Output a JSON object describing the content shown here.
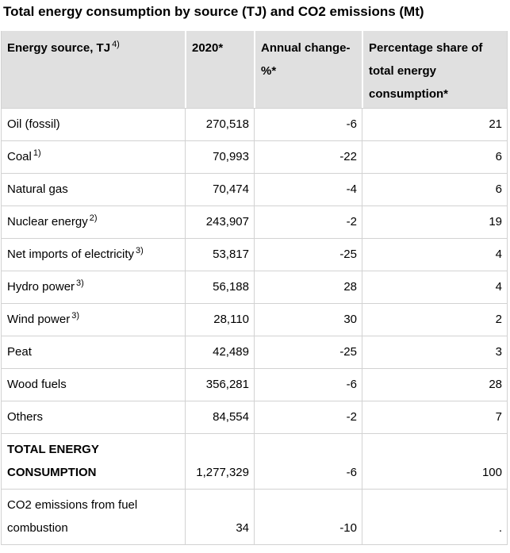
{
  "title": "Total energy consumption by source (TJ) and CO2 emissions (Mt)",
  "table": {
    "header": [
      {
        "label": "Energy source, TJ",
        "sup": "4)"
      },
      {
        "label": "2020*",
        "sup": ""
      },
      {
        "label": "Annual change-%*",
        "sup": ""
      },
      {
        "label": "Percentage share of total energy consumption*",
        "sup": ""
      }
    ],
    "rows": [
      {
        "source": "Oil (fossil)",
        "sup": "",
        "value_2020": "270,518",
        "annual_change": "-6",
        "share": "21"
      },
      {
        "source": "Coal",
        "sup": "1)",
        "value_2020": "70,993",
        "annual_change": "-22",
        "share": "6"
      },
      {
        "source": "Natural gas",
        "sup": "",
        "value_2020": "70,474",
        "annual_change": "-4",
        "share": "6"
      },
      {
        "source": "Nuclear energy",
        "sup": "2)",
        "value_2020": "243,907",
        "annual_change": "-2",
        "share": "19"
      },
      {
        "source": "Net imports of electricity",
        "sup": "3)",
        "value_2020": "53,817",
        "annual_change": "-25",
        "share": "4"
      },
      {
        "source": "Hydro power",
        "sup": "3)",
        "value_2020": "56,188",
        "annual_change": "28",
        "share": "4"
      },
      {
        "source": "Wind power",
        "sup": "3)",
        "value_2020": "28,110",
        "annual_change": "30",
        "share": "2"
      },
      {
        "source": "Peat",
        "sup": "",
        "value_2020": "42,489",
        "annual_change": "-25",
        "share": "3"
      },
      {
        "source": "Wood fuels",
        "sup": "",
        "value_2020": "356,281",
        "annual_change": "-6",
        "share": "28"
      },
      {
        "source": "Others",
        "sup": "",
        "value_2020": "84,554",
        "annual_change": "-2",
        "share": "7"
      },
      {
        "source": "TOTAL ENERGY CONSUMPTION",
        "sup": "",
        "value_2020": "1,277,329",
        "annual_change": "-6",
        "share": "100"
      },
      {
        "source": "CO2 emissions from fuel combustion",
        "sup": "",
        "value_2020": "34",
        "annual_change": "-10",
        "share": "."
      }
    ]
  },
  "colors": {
    "header_bg": "#e0e0e0",
    "grid_border": "#d2d2d2",
    "header_divider": "#ffffff",
    "text": "#000000"
  },
  "chart_data": {
    "type": "table",
    "title": "Total energy consumption by source (TJ) and CO2 emissions (Mt)",
    "columns": [
      "Energy source, TJ 4)",
      "2020*",
      "Annual change-%*",
      "Percentage share of total energy consumption*"
    ],
    "rows": [
      {
        "source": "Oil (fossil)",
        "value_2020_tj": 270518,
        "annual_change_pct": -6,
        "share_pct": 21
      },
      {
        "source": "Coal 1)",
        "value_2020_tj": 70993,
        "annual_change_pct": -22,
        "share_pct": 6
      },
      {
        "source": "Natural gas",
        "value_2020_tj": 70474,
        "annual_change_pct": -4,
        "share_pct": 6
      },
      {
        "source": "Nuclear energy 2)",
        "value_2020_tj": 243907,
        "annual_change_pct": -2,
        "share_pct": 19
      },
      {
        "source": "Net imports of electricity 3)",
        "value_2020_tj": 53817,
        "annual_change_pct": -25,
        "share_pct": 4
      },
      {
        "source": "Hydro power 3)",
        "value_2020_tj": 56188,
        "annual_change_pct": 28,
        "share_pct": 4
      },
      {
        "source": "Wind power 3)",
        "value_2020_tj": 28110,
        "annual_change_pct": 30,
        "share_pct": 2
      },
      {
        "source": "Peat",
        "value_2020_tj": 42489,
        "annual_change_pct": -25,
        "share_pct": 3
      },
      {
        "source": "Wood fuels",
        "value_2020_tj": 356281,
        "annual_change_pct": -6,
        "share_pct": 28
      },
      {
        "source": "Others",
        "value_2020_tj": 84554,
        "annual_change_pct": -2,
        "share_pct": 7
      },
      {
        "source": "TOTAL ENERGY CONSUMPTION",
        "value_2020_tj": 1277329,
        "annual_change_pct": -6,
        "share_pct": 100
      },
      {
        "source": "CO2 emissions from fuel combustion (Mt)",
        "value_2020": 34,
        "annual_change_pct": -10,
        "share_pct": "."
      }
    ]
  }
}
